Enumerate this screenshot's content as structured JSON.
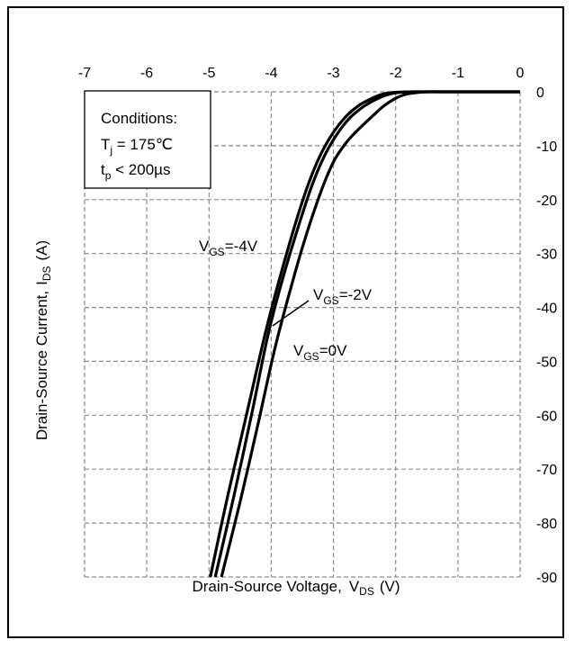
{
  "chart_data": {
    "type": "line",
    "xlabel": "Drain-Source Voltage,",
    "xlabel_var": "V",
    "xlabel_sub": "DS",
    "xlabel_unit": "(V)",
    "ylabel": "Drain-Source Current,",
    "ylabel_var": "I",
    "ylabel_sub": "DS",
    "ylabel_unit": "(A)",
    "xlim": [
      -7,
      0
    ],
    "ylim": [
      -90,
      0
    ],
    "x_ticks": [
      -7,
      -6,
      -5,
      -4,
      -3,
      -2,
      -1,
      0
    ],
    "x_tick_labels": [
      "-7",
      "-6",
      "-5",
      "-4",
      "-3",
      "-2",
      "-1",
      "0"
    ],
    "y_ticks": [
      0,
      -10,
      -20,
      -30,
      -40,
      -50,
      -60,
      -70,
      -80,
      -90
    ],
    "y_tick_labels": [
      "0",
      "-10",
      "-20",
      "-30",
      "-40",
      "-50",
      "-60",
      "-70",
      "-80",
      "-90"
    ],
    "x_axis_position": "top",
    "y_axis_position": "right",
    "grid": true,
    "conditions": {
      "title": "Conditions:",
      "line1_var": "T",
      "line1_sub": "j",
      "line1_rest": " = 175℃",
      "line2_var": "t",
      "line2_sub": "p",
      "line2_rest": " < 200µs"
    },
    "series": [
      {
        "name": "VGS=-4V",
        "label_var": "V",
        "label_sub": "GS",
        "label_rest": "=-4V",
        "x": [
          -4.98,
          -4.7,
          -4.4,
          -4.1,
          -3.85,
          -3.6,
          -3.4,
          -3.2,
          -3.0,
          -2.8,
          -2.6,
          -2.4,
          -2.2,
          -2.0,
          -1.7,
          -1.4,
          -1.0,
          -0.5,
          0
        ],
        "y": [
          -90,
          -75,
          -60,
          -45,
          -34,
          -24,
          -17,
          -11.5,
          -7.5,
          -4.6,
          -2.6,
          -1.3,
          -0.4,
          -0.1,
          0,
          0,
          0,
          0,
          0
        ]
      },
      {
        "name": "VGS=-2V",
        "label_var": "V",
        "label_sub": "GS",
        "label_rest": "=-2V",
        "x": [
          -4.9,
          -4.6,
          -4.3,
          -4.05,
          -3.8,
          -3.55,
          -3.35,
          -3.15,
          -2.95,
          -2.75,
          -2.55,
          -2.35,
          -2.15,
          -1.95,
          -1.7,
          -1.4,
          -1.0,
          -0.5,
          0
        ],
        "y": [
          -90,
          -75,
          -59,
          -45,
          -34,
          -24.5,
          -17.5,
          -12,
          -8,
          -5,
          -3,
          -1.6,
          -0.6,
          -0.1,
          0,
          0,
          0,
          0,
          0
        ]
      },
      {
        "name": "VGS=0V",
        "label_var": "V",
        "label_sub": "GS",
        "label_rest": "=0V",
        "x": [
          -4.8,
          -4.5,
          -4.2,
          -3.95,
          -3.7,
          -3.45,
          -3.2,
          -3.0,
          -2.8,
          -2.6,
          -2.4,
          -2.2,
          -2.0,
          -1.85,
          -1.7,
          -1.5,
          -1.3,
          -1.0,
          -0.5,
          0
        ],
        "y": [
          -90,
          -76,
          -61,
          -48,
          -37,
          -27,
          -18.5,
          -13,
          -9.5,
          -7,
          -4.8,
          -2.7,
          -1.2,
          -0.5,
          -0.2,
          0,
          0,
          0,
          0,
          0
        ]
      }
    ]
  }
}
